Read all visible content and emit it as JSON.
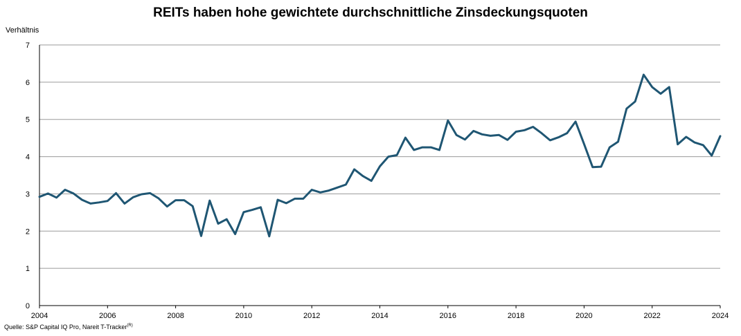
{
  "chart_data": {
    "type": "line",
    "title": "REITs haben hohe gewichtete durchschnittliche Zinsdeckungsquoten",
    "ylabel": "Verhältnis",
    "xlabel": "",
    "ylim": [
      0,
      7
    ],
    "xlim": [
      2004,
      2024
    ],
    "yticks": [
      "0",
      "1",
      "2",
      "3",
      "4",
      "5",
      "6",
      "7"
    ],
    "xticks": [
      "2004",
      "2006",
      "2008",
      "2010",
      "2012",
      "2014",
      "2016",
      "2018",
      "2020",
      "2022",
      "2024"
    ],
    "grid": "horizontal",
    "line_color": "#1f5673",
    "series": [
      {
        "x": [
          2004.0,
          2004.25,
          2004.5,
          2004.75,
          2005.0,
          2005.25,
          2005.5,
          2005.75,
          2006.0,
          2006.25,
          2006.5,
          2006.75,
          2007.0,
          2007.25,
          2007.5,
          2007.75,
          2008.0,
          2008.25,
          2008.5,
          2008.75,
          2009.0,
          2009.25,
          2009.5,
          2009.75,
          2010.0,
          2010.25,
          2010.5,
          2010.75,
          2011.0,
          2011.25,
          2011.5,
          2011.75,
          2012.0,
          2012.25,
          2012.5,
          2012.75,
          2013.0,
          2013.25,
          2013.5,
          2013.75,
          2014.0,
          2014.25,
          2014.5,
          2014.75,
          2015.0,
          2015.25,
          2015.5,
          2015.75,
          2016.0,
          2016.25,
          2016.5,
          2016.75,
          2017.0,
          2017.25,
          2017.5,
          2017.75,
          2018.0,
          2018.25,
          2018.5,
          2018.75,
          2019.0,
          2019.25,
          2019.5,
          2019.75,
          2020.0,
          2020.25,
          2020.5,
          2020.75,
          2021.0,
          2021.25,
          2021.5,
          2021.75,
          2022.0,
          2022.25,
          2022.5,
          2022.75,
          2023.0,
          2023.25,
          2023.5,
          2023.75,
          2024.0
        ],
        "values": [
          2.92,
          3.01,
          2.9,
          3.11,
          3.01,
          2.84,
          2.74,
          2.77,
          2.81,
          3.02,
          2.74,
          2.91,
          2.99,
          3.02,
          2.88,
          2.66,
          2.83,
          2.83,
          2.67,
          1.87,
          2.82,
          2.2,
          2.32,
          1.92,
          2.51,
          2.57,
          2.64,
          1.86,
          2.84,
          2.75,
          2.87,
          2.87,
          3.11,
          3.04,
          3.09,
          3.17,
          3.25,
          3.66,
          3.48,
          3.35,
          3.74,
          4.0,
          4.04,
          4.51,
          4.18,
          4.25,
          4.25,
          4.18,
          4.97,
          4.58,
          4.46,
          4.69,
          4.6,
          4.56,
          4.58,
          4.45,
          4.67,
          4.71,
          4.8,
          4.63,
          4.44,
          4.52,
          4.63,
          4.94,
          4.34,
          3.72,
          3.73,
          4.25,
          4.4,
          5.29,
          5.48,
          6.2,
          5.87,
          5.69,
          5.87,
          4.33,
          4.53,
          4.38,
          4.31,
          4.03,
          4.55
        ]
      }
    ]
  },
  "source": {
    "text": "Quelle: S&P Capital IQ Pro, Nareit T-Tracker",
    "superscript": "(R)"
  }
}
